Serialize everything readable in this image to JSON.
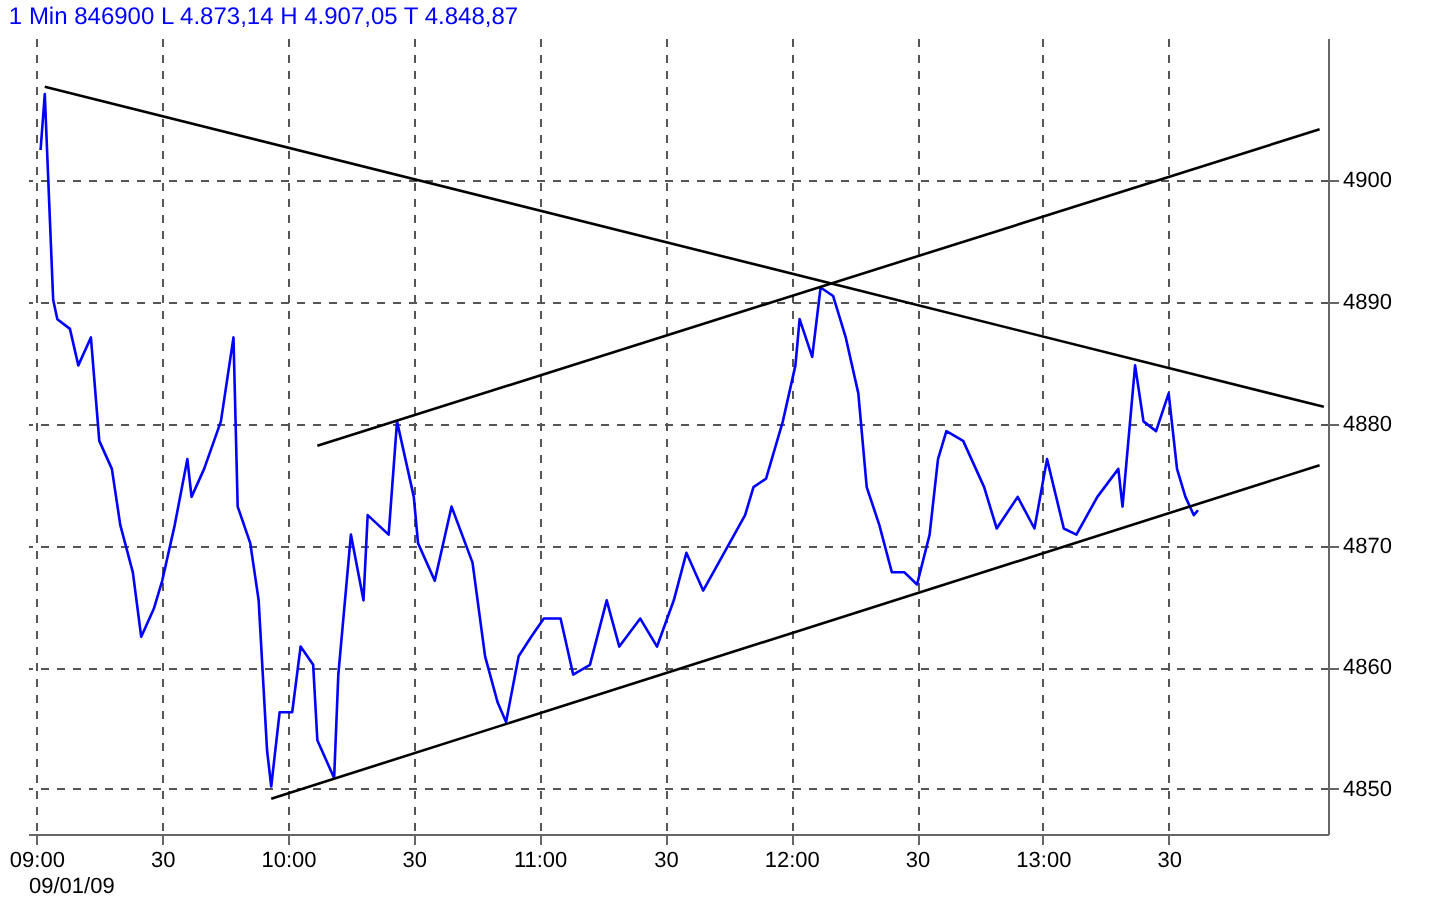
{
  "chart_data": {
    "type": "line",
    "title": "1 Min   846900   L 4.873,14   H 4.907,05   T 4.848,87",
    "xlabel": "09/01/09",
    "xlim": [
      "--01-09T08:58",
      "--01-09T14:08"
    ],
    "ylim": [
      4846.3,
      4911.7
    ],
    "xticks": [
      {
        "value": "--01-09T09:00",
        "label": "09:00"
      },
      {
        "value": "--01-09T09:30",
        "label": "30"
      },
      {
        "value": "--01-09T10:00",
        "label": "10:00"
      },
      {
        "value": "--01-09T10:30",
        "label": "30"
      },
      {
        "value": "--01-09T11:00",
        "label": "11:00"
      },
      {
        "value": "--01-09T11:30",
        "label": "30"
      },
      {
        "value": "--01-09T12:00",
        "label": "12:00"
      },
      {
        "value": "--01-09T12:30",
        "label": "30"
      },
      {
        "value": "--01-09T13:00",
        "label": "13:00"
      },
      {
        "value": "--01-09T13:30",
        "label": "30"
      }
    ],
    "yticks": [
      4850,
      4860,
      4870,
      4880,
      4890,
      4900
    ],
    "grid": true,
    "line_style": "solid",
    "marker": "none",
    "series": [
      {
        "color": "#0000ff",
        "x": [
          "--01-09T09:01",
          "--01-09T09:02",
          "--01-09T09:04",
          "--01-09T09:05",
          "--01-09T09:08",
          "--01-09T09:10",
          "--01-09T09:13",
          "--01-09T09:15",
          "--01-09T09:18",
          "--01-09T09:20",
          "--01-09T09:23",
          "--01-09T09:25",
          "--01-09T09:28",
          "--01-09T09:30",
          "--01-09T09:33",
          "--01-09T09:36",
          "--01-09T09:37",
          "--01-09T09:40",
          "--01-09T09:44",
          "--01-09T09:47",
          "--01-09T09:48",
          "--01-09T09:51",
          "--01-09T09:53",
          "--01-09T09:55",
          "--01-09T09:56",
          "--01-09T09:58",
          "--01-09T10:01",
          "--01-09T10:03",
          "--01-09T10:06",
          "--01-09T10:07",
          "--01-09T10:11",
          "--01-09T10:12",
          "--01-09T10:15",
          "--01-09T10:18",
          "--01-09T10:19",
          "--01-09T10:24",
          "--01-09T10:26",
          "--01-09T10:30",
          "--01-09T10:31",
          "--01-09T10:35",
          "--01-09T10:39",
          "--01-09T10:44",
          "--01-09T10:47",
          "--01-09T10:50",
          "--01-09T10:52",
          "--01-09T10:55",
          "--01-09T10:58",
          "--01-09T11:01",
          "--01-09T11:05",
          "--01-09T11:08",
          "--01-09T11:12",
          "--01-09T11:16",
          "--01-09T11:19",
          "--01-09T11:24",
          "--01-09T11:28",
          "--01-09T11:32",
          "--01-09T11:35",
          "--01-09T11:39",
          "--01-09T11:44",
          "--01-09T11:49",
          "--01-09T11:51",
          "--01-09T11:54",
          "--01-09T11:58",
          "--01-09T12:01",
          "--01-09T12:02",
          "--01-09T12:05",
          "--01-09T12:07",
          "--01-09T12:10",
          "--01-09T12:13",
          "--01-09T12:16",
          "--01-09T12:18",
          "--01-09T12:21",
          "--01-09T12:24",
          "--01-09T12:27",
          "--01-09T12:30",
          "--01-09T12:33",
          "--01-09T12:35",
          "--01-09T12:37",
          "--01-09T12:41",
          "--01-09T12:46",
          "--01-09T12:49",
          "--01-09T12:54",
          "--01-09T12:58",
          "--01-09T13:01",
          "--01-09T13:05",
          "--01-09T13:08",
          "--01-09T13:13",
          "--01-09T13:18",
          "--01-09T13:19",
          "--01-09T13:22",
          "--01-09T13:24",
          "--01-09T13:27",
          "--01-09T13:30",
          "--01-09T13:32",
          "--01-09T13:34",
          "--01-09T13:36",
          "--01-09T13:37"
        ],
        "values": [
          4902.5,
          4907.1,
          4890.2,
          4888.6,
          4887.8,
          4884.8,
          4887.1,
          4878.6,
          4876.3,
          4871.7,
          4867.8,
          4862.5,
          4864.8,
          4867.1,
          4871.7,
          4877.1,
          4874.0,
          4876.3,
          4880.2,
          4887.1,
          4873.2,
          4870.2,
          4865.5,
          4853.2,
          4850.2,
          4856.3,
          4856.3,
          4861.7,
          4860.2,
          4854.0,
          4850.9,
          4859.4,
          4870.9,
          4865.5,
          4872.5,
          4870.9,
          4880.2,
          4874.0,
          4870.2,
          4867.1,
          4873.2,
          4868.6,
          4860.9,
          4857.1,
          4855.5,
          4860.9,
          4862.5,
          4864.0,
          4864.0,
          4859.4,
          4860.2,
          4865.5,
          4861.7,
          4864.0,
          4861.7,
          4865.5,
          4869.4,
          4866.3,
          4869.4,
          4872.5,
          4874.8,
          4875.5,
          4880.2,
          4884.8,
          4888.6,
          4885.5,
          4891.2,
          4890.5,
          4887.1,
          4882.5,
          4874.8,
          4871.7,
          4867.8,
          4867.8,
          4866.8,
          4870.9,
          4877.1,
          4879.4,
          4878.6,
          4874.8,
          4871.4,
          4874.0,
          4871.4,
          4877.1,
          4871.4,
          4870.9,
          4874.0,
          4876.3,
          4873.2,
          4884.8,
          4880.2,
          4879.4,
          4882.5,
          4876.3,
          4874.0,
          4872.5,
          4872.9
        ]
      },
      {
        "color": "#000000",
        "x": [
          "--01-09T09:02",
          "--01-09T14:07"
        ],
        "values": [
          4907.7,
          4881.4
        ]
      },
      {
        "color": "#000000",
        "x": [
          "--01-09T10:07",
          "--01-09T14:06"
        ],
        "values": [
          4878.2,
          4904.2
        ]
      },
      {
        "color": "#000000",
        "x": [
          "--01-09T09:56",
          "--01-09T14:06"
        ],
        "values": [
          4849.2,
          4876.6
        ]
      }
    ]
  }
}
